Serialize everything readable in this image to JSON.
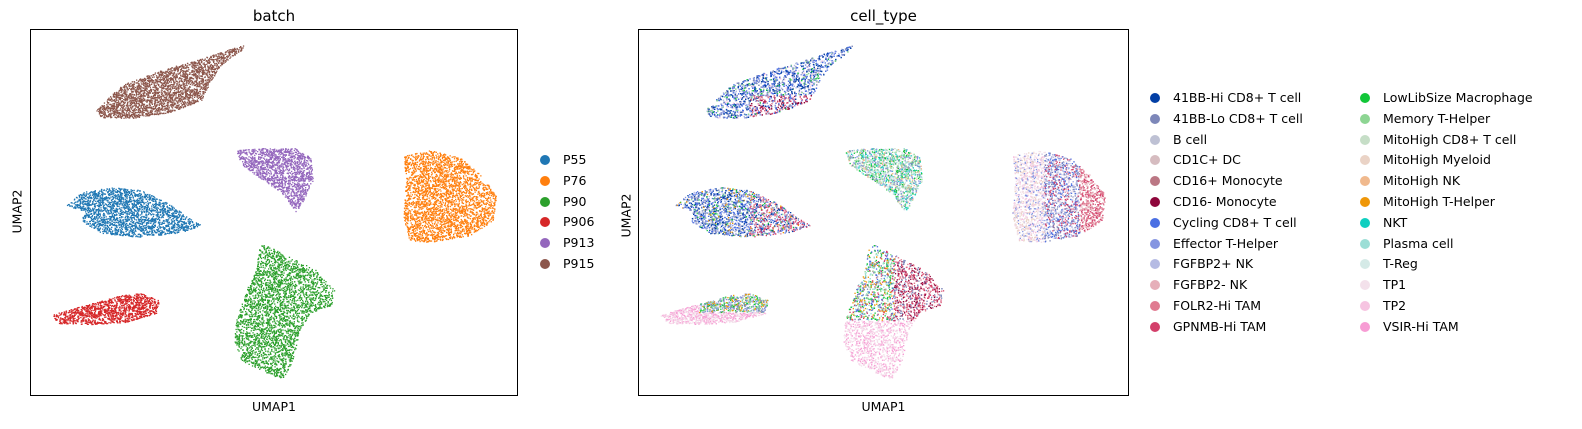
{
  "chart_data": [
    {
      "type": "scatter",
      "title": "batch",
      "xlabel": "UMAP1",
      "ylabel": "UMAP2",
      "grid": false,
      "legend_placement": "right",
      "series": [
        {
          "name": "P55",
          "color": "#1f77b4"
        },
        {
          "name": "P76",
          "color": "#ff7f0e"
        },
        {
          "name": "P90",
          "color": "#2ca02c"
        },
        {
          "name": "P906",
          "color": "#d62728"
        },
        {
          "name": "P913",
          "color": "#9467bd"
        },
        {
          "name": "P915",
          "color": "#8c564b"
        }
      ]
    },
    {
      "type": "scatter",
      "title": "cell_type",
      "xlabel": "UMAP1",
      "ylabel": "UMAP2",
      "grid": false,
      "legend_placement": "right",
      "series": [
        {
          "name": "41BB-Hi CD8+ T cell",
          "color": "#023fa5"
        },
        {
          "name": "41BB-Lo CD8+ T cell",
          "color": "#7d87b9"
        },
        {
          "name": "B cell",
          "color": "#bec1d4"
        },
        {
          "name": "CD1C+ DC",
          "color": "#d6bcc0"
        },
        {
          "name": "CD16+ Monocyte",
          "color": "#bb7784"
        },
        {
          "name": "CD16- Monocyte",
          "color": "#8e063b"
        },
        {
          "name": "Cycling CD8+ T cell",
          "color": "#4a6fe3"
        },
        {
          "name": "Effector T-Helper",
          "color": "#8595e1"
        },
        {
          "name": "FGFBP2+ NK",
          "color": "#b5bbe3"
        },
        {
          "name": "FGFBP2- NK",
          "color": "#e6afb9"
        },
        {
          "name": "FOLR2-Hi TAM",
          "color": "#e07b91"
        },
        {
          "name": "GPNMB-Hi TAM",
          "color": "#d33f6a"
        },
        {
          "name": "LowLibSize Macrophage",
          "color": "#11c638"
        },
        {
          "name": "Memory T-Helper",
          "color": "#8dd593"
        },
        {
          "name": "MitoHigh CD8+ T cell",
          "color": "#c6dec7"
        },
        {
          "name": "MitoHigh Myeloid",
          "color": "#ead3c6"
        },
        {
          "name": "MitoHigh NK",
          "color": "#f0b98d"
        },
        {
          "name": "MitoHigh T-Helper",
          "color": "#ef9708"
        },
        {
          "name": "NKT",
          "color": "#0fcfc0"
        },
        {
          "name": "Plasma cell",
          "color": "#9cded6"
        },
        {
          "name": "T-Reg",
          "color": "#d5eae7"
        },
        {
          "name": "TP1",
          "color": "#f3e1eb"
        },
        {
          "name": "TP2",
          "color": "#f6c4e1"
        },
        {
          "name": "VSIR-Hi TAM",
          "color": "#f79cd4"
        }
      ]
    }
  ]
}
